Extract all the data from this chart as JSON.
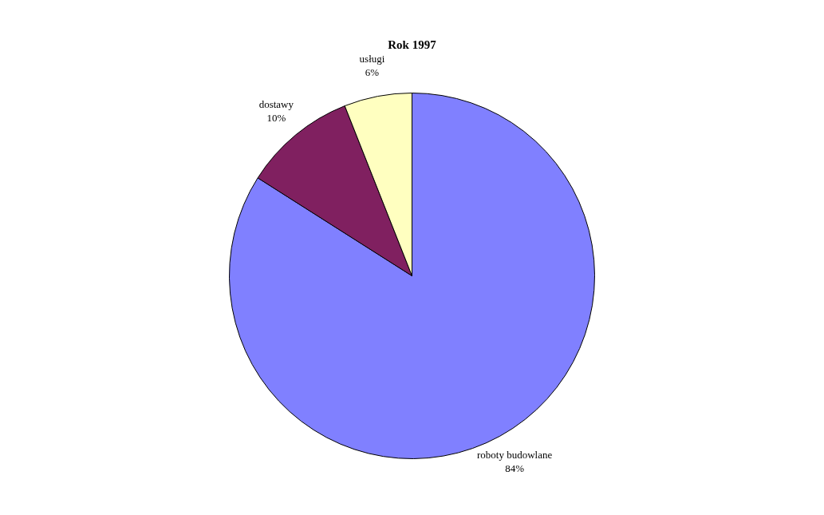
{
  "chart_data": {
    "type": "pie",
    "title": "Rok 1997",
    "categories": [
      "roboty budowlane",
      "dostawy",
      "usługi"
    ],
    "values": [
      84,
      10,
      6
    ],
    "colors": [
      "#8080ff",
      "#802060",
      "#ffffc0"
    ],
    "value_labels": [
      "84%",
      "10%",
      "6%"
    ],
    "legend": false
  }
}
